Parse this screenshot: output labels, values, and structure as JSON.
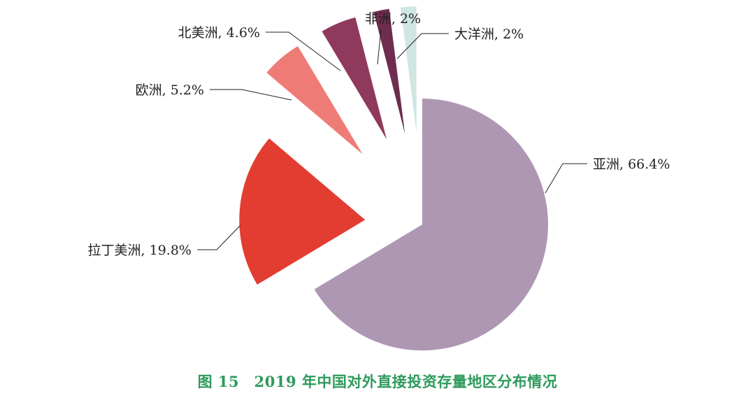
{
  "caption": "图 15　2019 年中国对外直接投资存量地区分布情况",
  "chart_data": {
    "type": "pie",
    "title": "图 15　2019 年中国对外直接投资存量地区分布情况",
    "unit": "%",
    "exploded": true,
    "slices": [
      {
        "name": "亚洲",
        "value": 66.4,
        "label": "亚洲, 66.4%",
        "color": "#ad97b3"
      },
      {
        "name": "拉丁美洲",
        "value": 19.8,
        "label": "拉丁美洲, 19.8%",
        "color": "#e33d32"
      },
      {
        "name": "欧洲",
        "value": 5.2,
        "label": "欧洲, 5.2%",
        "color": "#ef7b76"
      },
      {
        "name": "北美洲",
        "value": 4.6,
        "label": "北美洲, 4.6%",
        "color": "#8f3a5c"
      },
      {
        "name": "非洲",
        "value": 2,
        "label": "非洲, 2%",
        "color": "#6e2c4f"
      },
      {
        "name": "大洋洲",
        "value": 2,
        "label": "大洋洲, 2%",
        "color": "#cfe6e3"
      }
    ]
  }
}
